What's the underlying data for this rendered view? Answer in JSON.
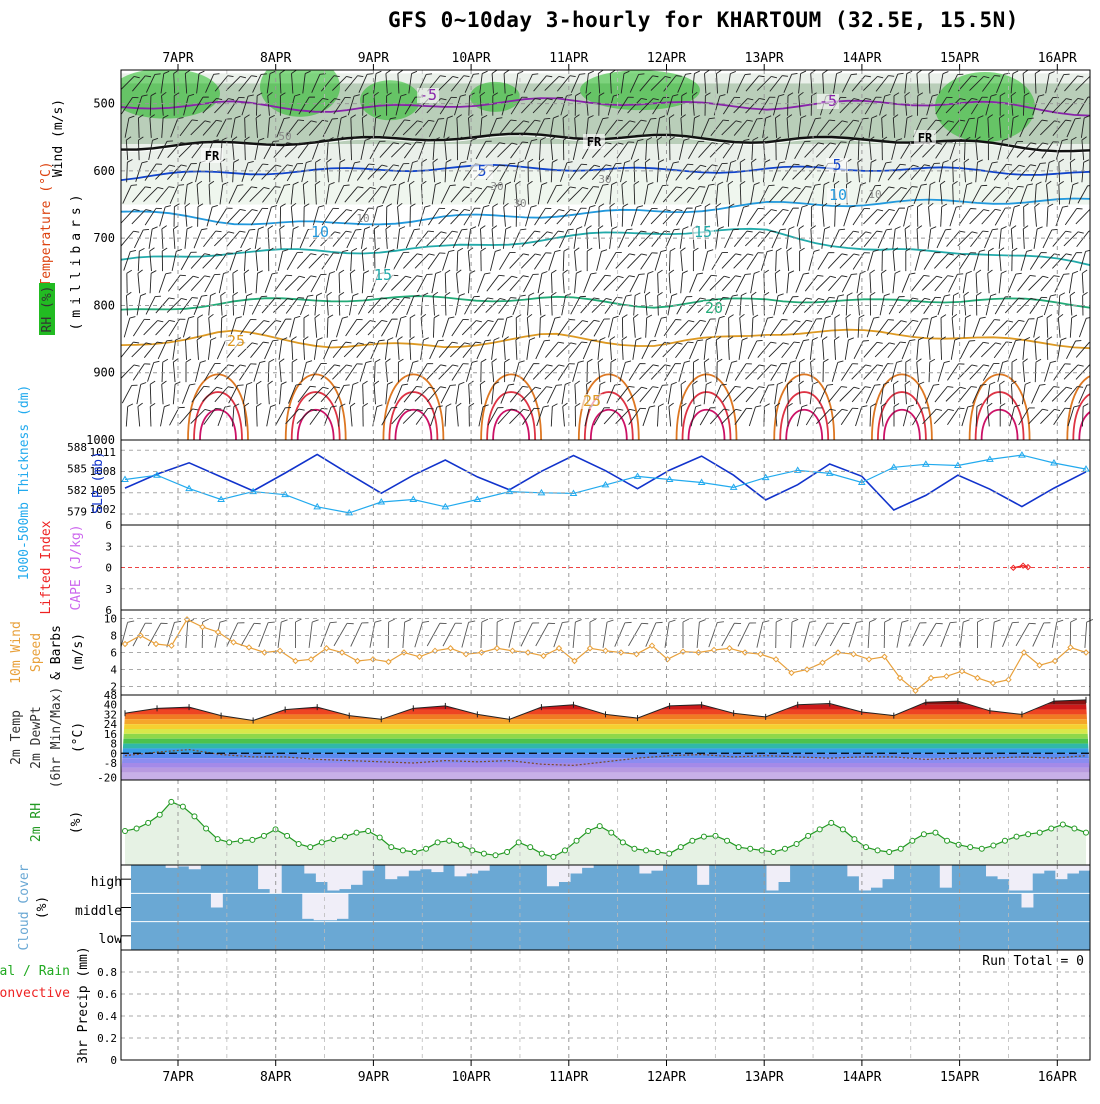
{
  "title": "GFS 0~10day 3-hourly for KHARTOUM (32.5E, 15.5N)",
  "dates": [
    "7APR",
    "8APR",
    "9APR",
    "10APR",
    "11APR",
    "12APR",
    "13APR",
    "14APR",
    "15APR",
    "16APR"
  ],
  "colors": {
    "rh_shade": "#22bb22",
    "temperature_label": "#dd4411",
    "wind_label": "#000000",
    "cape": "#cc66ee",
    "lifted_index": "#ee2222",
    "thickness": "#22aaee",
    "slp": "#1133cc",
    "wind10m": "#e8a03a",
    "rh2m": "#229922",
    "cloud_blue": "#6aa8d4",
    "cloud_clear": "#f0eef8",
    "precip_total": "#22aa22",
    "precip_conv": "#ee2222"
  },
  "upper_panel": {
    "labels": {
      "wind": "Wind (m/s)",
      "temperature": "Temperature (°C)",
      "rh": "RH (%)",
      "pressure": "(millibars)"
    },
    "chart_data": {
      "type": "heatmap",
      "y_ticks": [
        "500",
        "600",
        "700",
        "800",
        "900",
        "1000"
      ],
      "contour_labels": [
        "-5",
        "FR",
        "5",
        "10",
        "15",
        "20",
        "25"
      ],
      "rh_contour_labels": [
        "50",
        "30",
        "30",
        "30",
        "10",
        "10"
      ],
      "isotherms": [
        {
          "label": "-5",
          "mb": [
            505,
            500,
            510,
            502,
            495,
            500,
            505,
            498,
            500,
            515
          ]
        },
        {
          "label": "FR",
          "mb": [
            565,
            560,
            555,
            550,
            548,
            550,
            555,
            552,
            560,
            570
          ]
        },
        {
          "label": "5",
          "mb": [
            610,
            602,
            600,
            595,
            595,
            600,
            598,
            596,
            600,
            605
          ]
        },
        {
          "label": "10",
          "mb": [
            660,
            675,
            680,
            670,
            665,
            660,
            650,
            648,
            645,
            645
          ]
        },
        {
          "label": "15",
          "mb": [
            735,
            720,
            720,
            715,
            700,
            690,
            690,
            720,
            720,
            740
          ]
        },
        {
          "label": "20",
          "mb": [
            810,
            795,
            790,
            790,
            790,
            800,
            790,
            795,
            790,
            800
          ]
        },
        {
          "label": "25",
          "mb": [
            860,
            840,
            860,
            860,
            845,
            860,
            840,
            840,
            850,
            860
          ]
        }
      ]
    }
  },
  "slp_panel": {
    "labels": {
      "thickness": "1000-500mb Thickness (dm)",
      "slp": "SLP (mb)"
    },
    "chart_data": {
      "type": "line",
      "left_ticks": [
        "588",
        "585",
        "582",
        "579"
      ],
      "right_ticks": [
        "1011",
        "1008",
        "1005",
        "1002"
      ],
      "series": [
        {
          "name": "SLP (mb)",
          "values": [
            1005.5,
            1008,
            1010,
            1007.5,
            1005,
            1008.2,
            1011.5,
            1008,
            1004.6,
            1007.8,
            1010.5,
            1007.5,
            1005.2,
            1008.5,
            1011.3,
            1008.6,
            1005.4,
            1008.7,
            1011.2,
            1007.8,
            1003.4,
            1006.1,
            1009.8,
            1007.6,
            1001.6,
            1004.2,
            1007.8,
            1005.3,
            1002.2,
            1005.5,
            1008.4
          ]
        },
        {
          "name": "1000-500mb Thickness (dm)",
          "values": [
            583.5,
            584.2,
            582,
            580.2,
            581.5,
            581,
            579,
            578,
            579.8,
            580.2,
            579,
            580.2,
            581.5,
            581.3,
            581.2,
            582.6,
            584,
            583.5,
            583,
            582.2,
            583.8,
            585,
            584.5,
            583,
            585.5,
            586,
            585.8,
            586.8,
            587.5,
            586.2,
            585.2
          ]
        }
      ]
    }
  },
  "cape_panel": {
    "labels": {
      "lifted_index": "Lifted Index",
      "cape": "CAPE (J/kg)"
    },
    "chart_data": {
      "type": "line",
      "y_ticks": [
        "6",
        "3",
        "0",
        "3",
        "6"
      ],
      "series": [
        {
          "name": "Lifted Index",
          "x": [
            15.55,
            15.65,
            15.7
          ],
          "values": [
            -5.6,
            -5.9,
            -5.7
          ]
        }
      ]
    }
  },
  "wind_panel": {
    "labels": {
      "main": "10m Wind",
      "speed": "Speed",
      "barbs": "& Barbs",
      "unit": "(m/s)"
    },
    "chart_data": {
      "type": "line",
      "y_ticks": [
        "10",
        "8",
        "6",
        "4",
        "2"
      ],
      "ylim": [
        1,
        11
      ],
      "series": [
        {
          "name": "Speed",
          "values": [
            7.0,
            8.0,
            7.0,
            6.8,
            9.9,
            9.0,
            8.4,
            7.2,
            6.6,
            6.0,
            6.2,
            5.0,
            5.2,
            6.5,
            6.0,
            5.0,
            5.2,
            4.9,
            6.0,
            5.5,
            6.2,
            6.5,
            5.8,
            6.0,
            6.5,
            6.2,
            6.0,
            5.6,
            6.5,
            5.0,
            6.5,
            6.2,
            6.0,
            5.8,
            6.8,
            5.2,
            6.1,
            6.0,
            6.3,
            6.5,
            6.0,
            5.8,
            5.2,
            3.6,
            4.0,
            4.8,
            6.0,
            5.8,
            5.2,
            5.5,
            3.0,
            1.5,
            3.0,
            3.2,
            3.8,
            3.0,
            2.4,
            2.8,
            6.0,
            4.5,
            5.0,
            6.6,
            6.0
          ]
        }
      ]
    }
  },
  "temp_panel": {
    "labels": {
      "temp": "2m Temp",
      "dewpt": "2m DewPt",
      "minmax": "(6hr Min/Max)",
      "unit": "(°C)"
    },
    "chart_data": {
      "type": "area",
      "y_ticks": [
        "48",
        "40",
        "32",
        "24",
        "16",
        "8",
        "0",
        "-8",
        "-20"
      ],
      "ylim": [
        -22,
        48
      ],
      "series": [
        {
          "name": "2m Temp",
          "values": [
            33,
            37,
            38,
            31,
            27,
            36,
            38,
            31,
            28,
            37,
            39,
            32,
            28,
            38,
            40,
            32,
            29,
            39,
            40,
            33,
            30,
            40,
            41,
            34,
            31,
            42,
            43,
            35,
            32,
            43,
            44
          ]
        },
        {
          "name": "2m DewPt",
          "values": [
            -2,
            1,
            3,
            -1,
            -3,
            -3,
            -5,
            -6,
            -7,
            -8,
            -6,
            -7,
            -6,
            -9,
            -10,
            -7,
            -4,
            -2,
            -1,
            -3,
            -2,
            -3,
            -4,
            -3,
            -3,
            -5,
            -4,
            -4,
            -3,
            -4,
            -2
          ]
        }
      ]
    }
  },
  "rh_panel": {
    "labels": {
      "name": "2m RH",
      "unit": "(%)"
    },
    "chart_data": {
      "type": "line",
      "ylim": [
        0,
        100
      ],
      "series": [
        {
          "name": "2m RH",
          "values": [
            42,
            45,
            52,
            62,
            78,
            72,
            60,
            45,
            32,
            28,
            30,
            31,
            36,
            44,
            36,
            26,
            22,
            28,
            32,
            35,
            40,
            42,
            34,
            22,
            18,
            16,
            20,
            28,
            30,
            25,
            18,
            14,
            12,
            16,
            28,
            22,
            14,
            10,
            18,
            30,
            42,
            48,
            40,
            28,
            20,
            18,
            16,
            14,
            22,
            30,
            35,
            36,
            30,
            22,
            20,
            18,
            16,
            20,
            26,
            36,
            44,
            52,
            44,
            32,
            22,
            18,
            16,
            20,
            30,
            38,
            40,
            30,
            25,
            22,
            20,
            24,
            30,
            35,
            38,
            40,
            45,
            50,
            45,
            40
          ]
        }
      ]
    }
  },
  "cloud_panel": {
    "labels": {
      "name": "Cloud Cover",
      "unit": "(%)",
      "high": "high",
      "middle": "middle",
      "low": "low"
    },
    "chart_data": {
      "type": "heatmap",
      "rows": [
        "high",
        "middle",
        "low"
      ],
      "high": [
        0,
        0,
        0,
        0.1,
        0.05,
        0.15,
        0,
        0,
        0,
        0,
        0,
        0.85,
        1,
        0,
        0,
        0.3,
        0.6,
        0.9,
        0.85,
        0.7,
        0.2,
        0,
        0.5,
        0.4,
        0.2,
        0.15,
        0.25,
        0,
        0.4,
        0.3,
        0.2,
        0,
        0,
        0,
        0,
        0,
        0.75,
        0.6,
        0.3,
        0.1,
        0,
        0,
        0,
        0,
        0.3,
        0.2,
        0,
        0,
        0,
        0.7,
        0,
        0,
        0,
        0,
        0,
        0.9,
        0.6,
        0,
        0,
        0,
        0,
        0,
        0.4,
        0.9,
        0.8,
        0.5,
        0,
        0,
        0,
        0,
        0.8,
        0,
        0,
        0,
        0.4,
        0.5,
        0.9,
        0.9,
        0.3,
        0.2,
        0.5,
        0.3,
        0.2
      ],
      "middle": [
        0,
        0,
        0,
        0,
        0,
        0,
        0,
        0.5,
        0,
        0,
        0,
        0,
        0,
        0,
        0,
        0.9,
        0.95,
        0.95,
        0.9,
        0,
        0,
        0,
        0,
        0,
        0,
        0,
        0,
        0,
        0,
        0,
        0,
        0,
        0,
        0,
        0,
        0,
        0,
        0,
        0,
        0,
        0,
        0,
        0,
        0,
        0,
        0,
        0,
        0,
        0,
        0,
        0,
        0,
        0,
        0,
        0,
        0,
        0,
        0,
        0,
        0,
        0,
        0,
        0,
        0,
        0,
        0,
        0,
        0,
        0,
        0,
        0,
        0,
        0,
        0,
        0,
        0,
        0,
        0,
        0.5,
        0,
        0,
        0,
        0,
        0
      ],
      "low": [
        0,
        0,
        0,
        0,
        0,
        0,
        0,
        0,
        0,
        0,
        0,
        0,
        0,
        0,
        0,
        0,
        0,
        0,
        0,
        0,
        0,
        0,
        0,
        0,
        0,
        0,
        0,
        0,
        0,
        0,
        0,
        0,
        0,
        0,
        0,
        0,
        0,
        0,
        0,
        0,
        0,
        0,
        0,
        0,
        0,
        0,
        0,
        0,
        0,
        0,
        0,
        0,
        0,
        0,
        0,
        0,
        0,
        0,
        0,
        0,
        0,
        0,
        0,
        0,
        0,
        0,
        0,
        0,
        0,
        0,
        0,
        0,
        0,
        0,
        0,
        0,
        0,
        0,
        0,
        0,
        0,
        0,
        0,
        0
      ]
    }
  },
  "precip_panel": {
    "labels": {
      "main": "3hr Precip (mm)",
      "total": "Total / Rain",
      "convective": "Convective",
      "run_total": "Run Total = 0"
    },
    "chart_data": {
      "type": "bar",
      "y_ticks": [
        "0.8",
        "0.6",
        "0.4",
        "0.2",
        "0"
      ],
      "ylim": [
        0,
        1
      ],
      "values": []
    }
  }
}
